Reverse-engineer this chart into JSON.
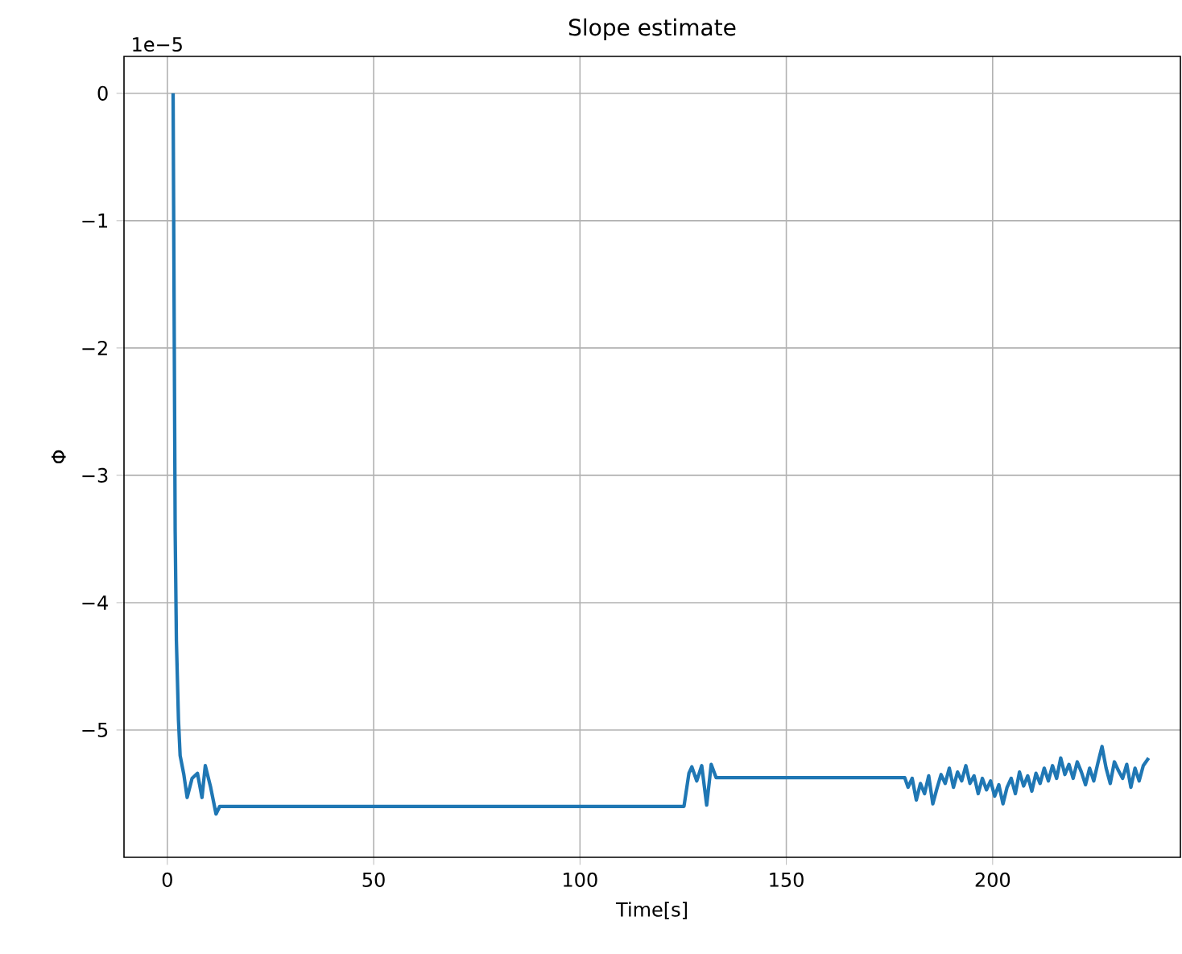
{
  "chart_data": {
    "type": "line",
    "title": "Slope estimate",
    "xlabel": "Time[s]",
    "ylabel": "Φ",
    "annotations": [
      "1e−5"
    ],
    "xlim": [
      -10.5,
      245.5
    ],
    "ylim": [
      -6.0,
      0.29
    ],
    "xticks": [
      0,
      50,
      100,
      150,
      200
    ],
    "yticks": [
      {
        "value": 0,
        "label": "0"
      },
      {
        "value": -1,
        "label": "−1"
      },
      {
        "value": -2,
        "label": "−2"
      },
      {
        "value": -3,
        "label": "−3"
      },
      {
        "value": -4,
        "label": "−4"
      },
      {
        "value": -5,
        "label": "−5"
      }
    ],
    "grid": true,
    "series": [
      {
        "color": "#1f77b4",
        "x": [
          1.4,
          1.9,
          2.2,
          2.7,
          3.1,
          4.0,
          4.8,
          6.0,
          7.3,
          8.4,
          9.2,
          10.5,
          11.8,
          12.7,
          125.2,
          126.4,
          127.1,
          128.3,
          129.5,
          130.7,
          131.8,
          133.0,
          178.7,
          179.5,
          180.5,
          181.5,
          182.5,
          183.5,
          184.5,
          185.5,
          186.5,
          187.5,
          188.5,
          189.5,
          190.5,
          191.5,
          192.5,
          193.5,
          194.5,
          195.5,
          196.5,
          197.5,
          198.5,
          199.5,
          200.5,
          201.5,
          202.5,
          203.5,
          204.5,
          205.5,
          206.5,
          207.5,
          208.5,
          209.5,
          210.5,
          211.5,
          212.5,
          213.5,
          214.5,
          215.5,
          216.5,
          217.5,
          218.5,
          219.5,
          220.5,
          221.5,
          222.5,
          223.5,
          224.5,
          225.5,
          226.5,
          227.5,
          228.5,
          229.5,
          230.5,
          231.5,
          232.5,
          233.5,
          234.5,
          235.5,
          236.5,
          237.8
        ],
        "values": [
          0,
          -3.44,
          -4.3,
          -4.92,
          -5.2,
          -5.35,
          -5.53,
          -5.38,
          -5.34,
          -5.53,
          -5.28,
          -5.45,
          -5.66,
          -5.6,
          -5.6,
          -5.34,
          -5.29,
          -5.4,
          -5.28,
          -5.59,
          -5.27,
          -5.375,
          -5.375,
          -5.45,
          -5.38,
          -5.55,
          -5.42,
          -5.5,
          -5.36,
          -5.58,
          -5.46,
          -5.35,
          -5.42,
          -5.3,
          -5.45,
          -5.33,
          -5.4,
          -5.28,
          -5.42,
          -5.36,
          -5.5,
          -5.38,
          -5.47,
          -5.4,
          -5.52,
          -5.43,
          -5.58,
          -5.45,
          -5.38,
          -5.5,
          -5.33,
          -5.44,
          -5.36,
          -5.48,
          -5.34,
          -5.42,
          -5.3,
          -5.4,
          -5.28,
          -5.38,
          -5.22,
          -5.35,
          -5.27,
          -5.38,
          -5.25,
          -5.33,
          -5.43,
          -5.3,
          -5.4,
          -5.26,
          -5.13,
          -5.3,
          -5.42,
          -5.25,
          -5.32,
          -5.38,
          -5.27,
          -5.45,
          -5.3,
          -5.4,
          -5.28,
          -5.22
        ]
      }
    ]
  }
}
